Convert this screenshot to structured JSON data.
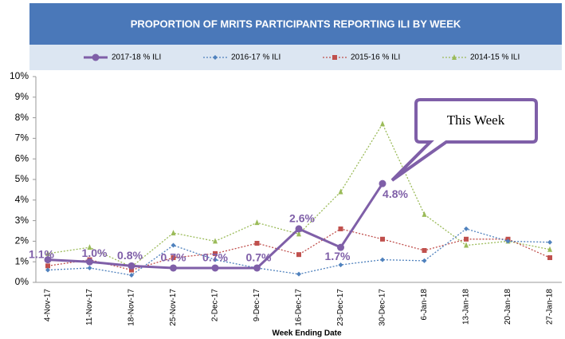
{
  "chart_data": {
    "type": "line",
    "title": "PROPORTION OF MRITS PARTICIPANTS REPORTING ILI BY WEEK",
    "x_label": "Week Ending Date",
    "annotation": "This Week",
    "categories": [
      "4-Nov-17",
      "11-Nov-17",
      "18-Nov-17",
      "25-Nov-17",
      "2-Dec-17",
      "9-Dec-17",
      "16-Dec-17",
      "23-Dec-17",
      "30-Dec-17",
      "6-Jan-18",
      "13-Jan-18",
      "20-Jan-18",
      "27-Jan-18"
    ],
    "ylim": [
      0,
      10
    ],
    "yticks": [
      {
        "value": 0,
        "label": "0%"
      },
      {
        "value": 1,
        "label": "1%"
      },
      {
        "value": 2,
        "label": "2%"
      },
      {
        "value": 3,
        "label": "3%"
      },
      {
        "value": 4,
        "label": "4%"
      },
      {
        "value": 5,
        "label": "5%"
      },
      {
        "value": 6,
        "label": "6%"
      },
      {
        "value": 7,
        "label": "7%"
      },
      {
        "value": 8,
        "label": "8%"
      },
      {
        "value": 9,
        "label": "9%"
      },
      {
        "value": 10,
        "label": "10%"
      }
    ],
    "series": [
      {
        "name": "2017-18 % ILI",
        "color": "#7f5fa8",
        "line_style": "solid",
        "marker": "circle",
        "values": [
          1.1,
          1.0,
          0.8,
          0.7,
          0.7,
          0.7,
          2.6,
          1.7,
          4.8,
          null,
          null,
          null,
          null
        ],
        "value_labels": [
          "1.1%",
          "1.0%",
          "0.8%",
          "0.7%",
          "0.7%",
          "0.7%",
          "2.6%",
          "1.7%",
          "4.8%",
          null,
          null,
          null,
          null
        ]
      },
      {
        "name": "2016-17 % ILI",
        "color": "#4f81bd",
        "line_style": "dotted",
        "marker": "diamond",
        "values": [
          0.6,
          0.7,
          0.35,
          1.8,
          1.1,
          0.7,
          0.4,
          0.85,
          1.1,
          1.05,
          2.6,
          2.0,
          1.95
        ]
      },
      {
        "name": "2015-16 % ILI",
        "color": "#c0504d",
        "line_style": "dotted",
        "marker": "square",
        "values": [
          0.8,
          1.1,
          0.6,
          1.2,
          1.4,
          1.9,
          1.35,
          2.6,
          2.1,
          1.55,
          2.1,
          2.1,
          1.2
        ]
      },
      {
        "name": "2014-15 % ILI",
        "color": "#9bbb59",
        "line_style": "dotted",
        "marker": "triangle",
        "values": [
          1.4,
          1.7,
          0.75,
          2.4,
          2.0,
          2.9,
          2.35,
          4.4,
          7.7,
          3.3,
          1.8,
          2.0,
          1.6
        ]
      }
    ]
  }
}
